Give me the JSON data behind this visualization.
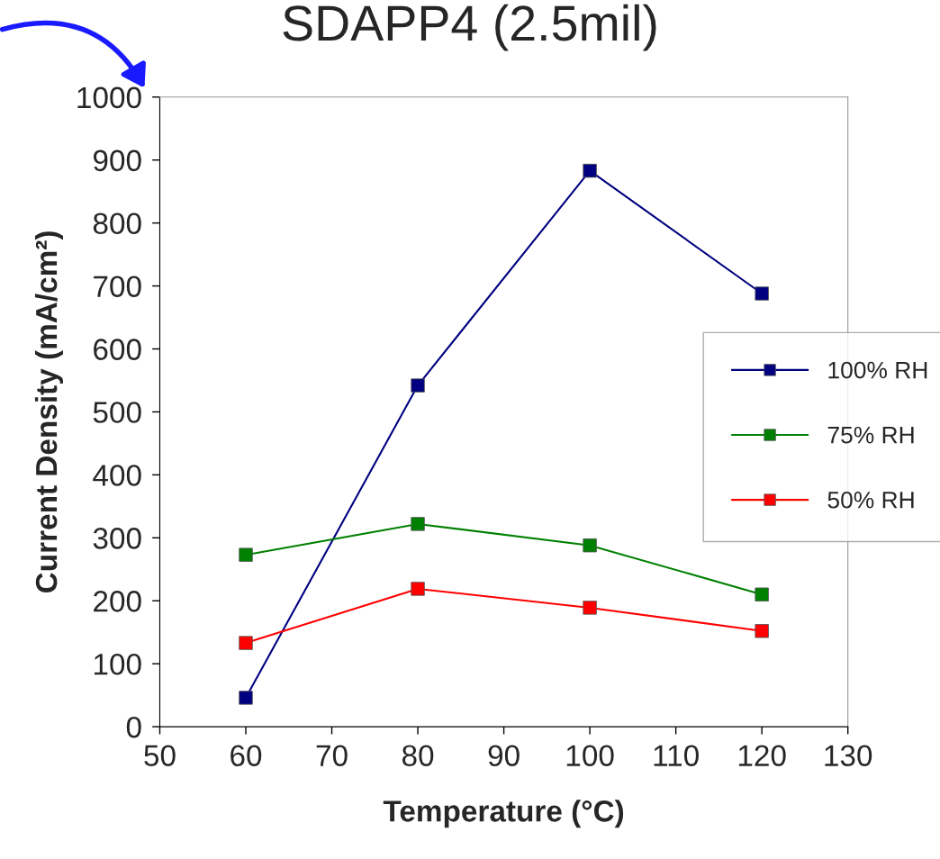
{
  "chart_data": {
    "type": "line",
    "title": "SDAPP4 (2.5mil)",
    "xlabel": "Temperature (°C)",
    "ylabel": "Current Density (mA/cm²)",
    "x": [
      60,
      80,
      100,
      120
    ],
    "series": [
      {
        "name": "100% RH",
        "color": "#000080",
        "values": [
          46,
          542,
          883,
          688
        ]
      },
      {
        "name": "75% RH",
        "color": "#008000",
        "values": [
          273,
          322,
          288,
          210
        ]
      },
      {
        "name": "50% RH",
        "color": "#ff0000",
        "values": [
          133,
          219,
          189,
          152
        ]
      }
    ],
    "xlim": [
      50,
      130
    ],
    "xticks": [
      50,
      60,
      70,
      80,
      90,
      100,
      110,
      120,
      130
    ],
    "ylim": [
      0,
      1000
    ],
    "yticks": [
      0,
      100,
      200,
      300,
      400,
      500,
      600,
      700,
      800,
      900,
      1000
    ],
    "grid": false,
    "legend": "right",
    "marker": "square",
    "line_style": "solid"
  }
}
